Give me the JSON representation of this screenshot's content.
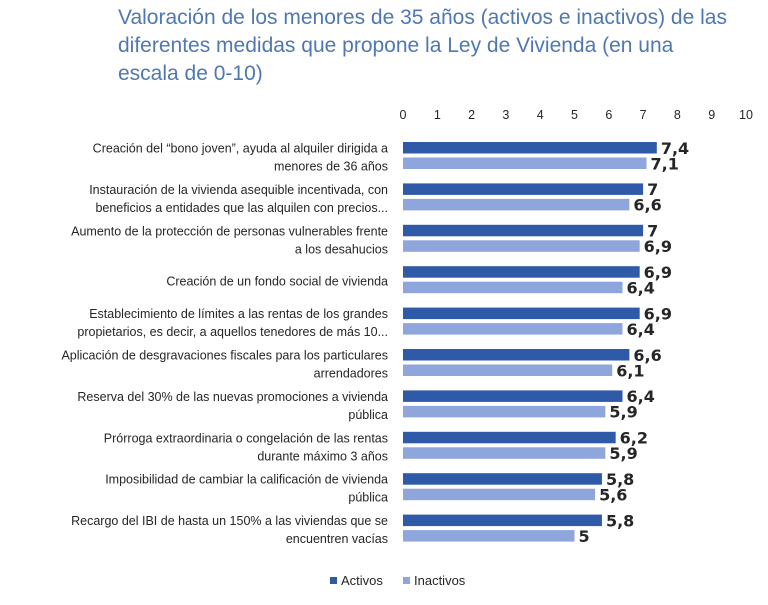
{
  "chart_data": {
    "type": "bar",
    "orientation": "horizontal",
    "title": "Valoración de los menores de 35 años (activos e inactivos) de las diferentes medidas que propone la Ley de Vivienda (en una escala de 0-10)",
    "xlim": [
      0,
      10
    ],
    "ticks": [
      "0",
      "1",
      "2",
      "3",
      "4",
      "5",
      "6",
      "7",
      "8",
      "9",
      "10"
    ],
    "grid": false,
    "legend_position": "bottom",
    "categories": [
      [
        "Creación del “bono joven”, ayuda al alquiler dirigida a",
        "menores de 36 años"
      ],
      [
        "Instauración de la vivienda asequible incentivada, con",
        "beneficios a entidades que las alquilen con precios..."
      ],
      [
        "Aumento de la protección de personas vulnerables frente",
        "a los desahucios"
      ],
      [
        "Creación de un fondo social de vivienda"
      ],
      [
        "Establecimiento de límites a las rentas de los grandes",
        "propietarios, es decir, a aquellos tenedores de más 10..."
      ],
      [
        "Aplicación de desgravaciones fiscales para los particulares",
        "arrendadores"
      ],
      [
        "Reserva del 30% de las nuevas promociones a vivienda",
        "pública"
      ],
      [
        "Prórroga extraordinaria o congelación de las rentas",
        "durante máximo 3 años"
      ],
      [
        "Imposibilidad de cambiar la calificación de vivienda",
        "pública"
      ],
      [
        "Recargo del IBI de hasta un 150% a las viviendas que se",
        "encuentren vacías"
      ]
    ],
    "series": [
      {
        "name": "Activos",
        "color": "#2e5aa8",
        "values": [
          7.4,
          7.0,
          7.0,
          6.9,
          6.9,
          6.6,
          6.4,
          6.2,
          5.8,
          5.8
        ],
        "labels": [
          "7,4",
          "7",
          "7",
          "6,9",
          "6,9",
          "6,6",
          "6,4",
          "6,2",
          "5,8",
          "5,8"
        ]
      },
      {
        "name": "Inactivos",
        "color": "#8fa6dc",
        "values": [
          7.1,
          6.6,
          6.9,
          6.4,
          6.4,
          6.1,
          5.9,
          5.9,
          5.6,
          5.0
        ],
        "labels": [
          "7,1",
          "6,6",
          "6,9",
          "6,4",
          "6,4",
          "6,1",
          "5,9",
          "5,9",
          "5,6",
          "5"
        ]
      }
    ]
  }
}
